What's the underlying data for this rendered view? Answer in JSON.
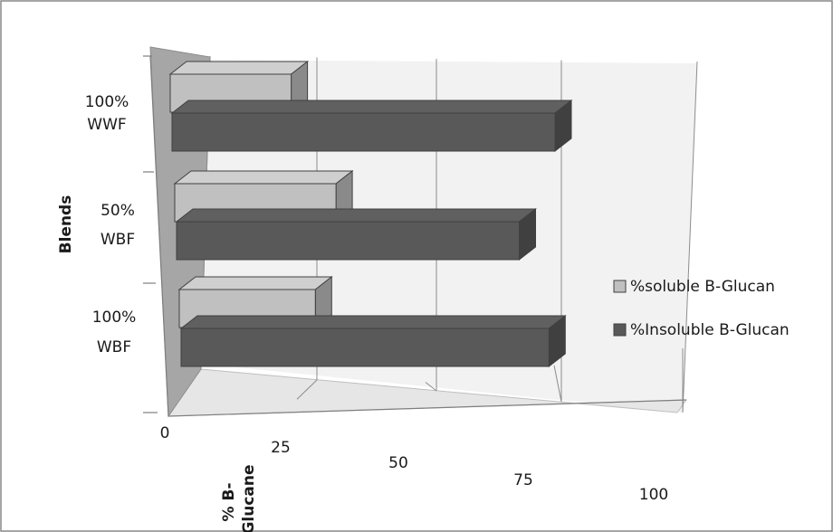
{
  "chart_data": {
    "type": "bar",
    "orientation": "horizontal",
    "style": "3d",
    "categories": [
      [
        "100%",
        "WWF"
      ],
      [
        "50%",
        "WBF"
      ],
      [
        "100%",
        "WBF"
      ]
    ],
    "series": [
      {
        "name": "%soluble B-Glucan",
        "values": [
          24,
          32,
          27
        ],
        "color": "#c0c0c0"
      },
      {
        "name": "%Insoluble B-Glucan",
        "values": [
          76,
          68,
          73
        ],
        "color": "#595959"
      }
    ],
    "xlabel": [
      "% B-",
      "Glucane"
    ],
    "ylabel": "Blends",
    "xticks": [
      0,
      25,
      50,
      75,
      100
    ],
    "xlim": [
      0,
      100
    ],
    "grid": true,
    "legend_position": "right"
  }
}
